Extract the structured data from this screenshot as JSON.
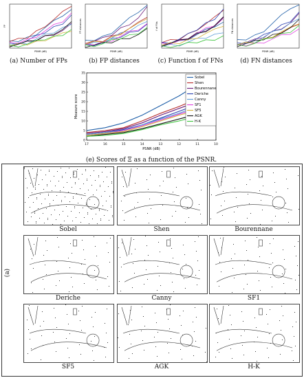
{
  "captions": {
    "a": "(a) Number of FPs",
    "b": "(b) FP distances",
    "c": "(c) Function f of FNs",
    "d": "(d) FN distances",
    "e": "(e) Scores of Ξ as a function of the PSNR."
  },
  "chart_data": {
    "type": "line",
    "x": [
      17,
      16,
      15,
      14,
      13,
      12,
      11,
      10
    ],
    "xlabel": "PSNR (dB)",
    "ylabel": "Measure score",
    "xlim": [
      17,
      10
    ],
    "ylim": [
      0,
      35
    ],
    "grid": false,
    "legend_position": "right",
    "series": [
      {
        "name": "Sobel",
        "color": "#1f5fa8",
        "values": [
          5.0,
          6.5,
          9.0,
          13.0,
          18.0,
          23.0,
          29.0,
          33.5
        ]
      },
      {
        "name": "Shen",
        "color": "#b52a2a",
        "values": [
          4.0,
          5.0,
          6.5,
          10.0,
          14.0,
          17.5,
          21.5,
          28.0
        ]
      },
      {
        "name": "Bourennane",
        "color": "#6a1b7a",
        "values": [
          3.5,
          4.5,
          6.0,
          9.0,
          13.0,
          16.5,
          20.0,
          26.5
        ]
      },
      {
        "name": "Deriche",
        "color": "#2a3fb0",
        "values": [
          3.0,
          4.0,
          5.5,
          8.0,
          11.5,
          15.0,
          18.5,
          24.0
        ]
      },
      {
        "name": "Canny",
        "color": "#5b9bd5",
        "values": [
          3.0,
          4.0,
          5.0,
          8.0,
          11.0,
          14.0,
          17.5,
          22.5
        ]
      },
      {
        "name": "SF1",
        "color": "#e040e0",
        "values": [
          2.5,
          3.5,
          5.0,
          7.5,
          10.5,
          13.5,
          16.5,
          21.0
        ]
      },
      {
        "name": "SF5",
        "color": "#d4b13a",
        "values": [
          2.5,
          3.5,
          4.5,
          7.0,
          10.0,
          13.0,
          15.5,
          20.0
        ]
      },
      {
        "name": "AGK",
        "color": "#111111",
        "values": [
          2.0,
          3.0,
          4.0,
          6.0,
          8.5,
          11.0,
          13.5,
          18.0
        ]
      },
      {
        "name": "H-K",
        "color": "#3cc43c",
        "values": [
          2.0,
          2.5,
          3.5,
          5.5,
          8.0,
          10.0,
          12.5,
          16.5
        ]
      }
    ]
  },
  "small_plots": [
    {
      "id": "a",
      "ylabel": "FP"
    },
    {
      "id": "b",
      "ylabel": "FP distances"
    },
    {
      "id": "c",
      "ylabel": "f of FNs"
    },
    {
      "id": "d",
      "ylabel": "FN distances"
    }
  ],
  "image_grid": {
    "side_label": "(a)",
    "cells": [
      "Sobel",
      "Shen",
      "Bourennane",
      "Deriche",
      "Canny",
      "SF1",
      "SF5",
      "AGK",
      "H-K"
    ]
  }
}
